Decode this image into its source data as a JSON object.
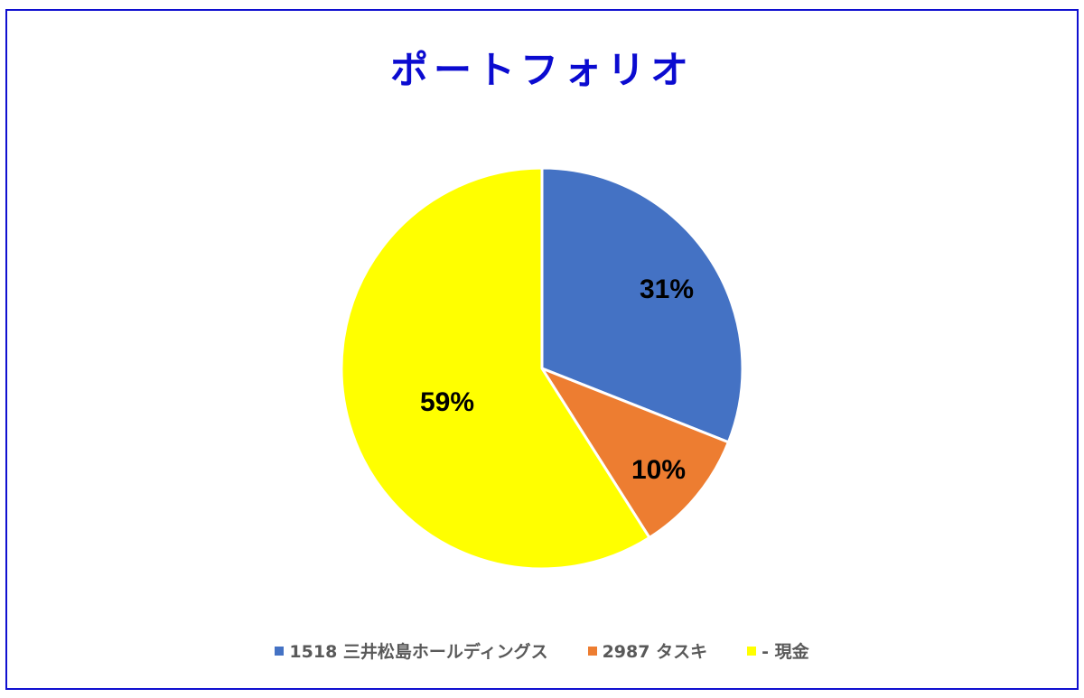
{
  "chart_data": {
    "type": "pie",
    "title": "ポートフォリオ",
    "categories": [
      "1518 三井松島ホールディングス",
      "2987 タスキ",
      "- 現金"
    ],
    "values": [
      31,
      10,
      59
    ],
    "labels": [
      "31%",
      "10%",
      "59%"
    ],
    "colors": [
      "#4472c4",
      "#ed7d31",
      "#ffff00"
    ],
    "legend_position": "bottom",
    "start_angle_deg": 0,
    "direction": "clockwise"
  },
  "chart": {
    "title": "ポートフォリオ",
    "title_color": "#0b0bd0",
    "border_color": "#1010d0",
    "legend": [
      {
        "label": "1518 三井松島ホールディングス",
        "color": "#4472c4"
      },
      {
        "label": "2987 タスキ",
        "color": "#ed7d31"
      },
      {
        "label": "- 現金",
        "color": "#ffff00"
      }
    ],
    "slice_labels": [
      "31%",
      "10%",
      "59%"
    ]
  }
}
